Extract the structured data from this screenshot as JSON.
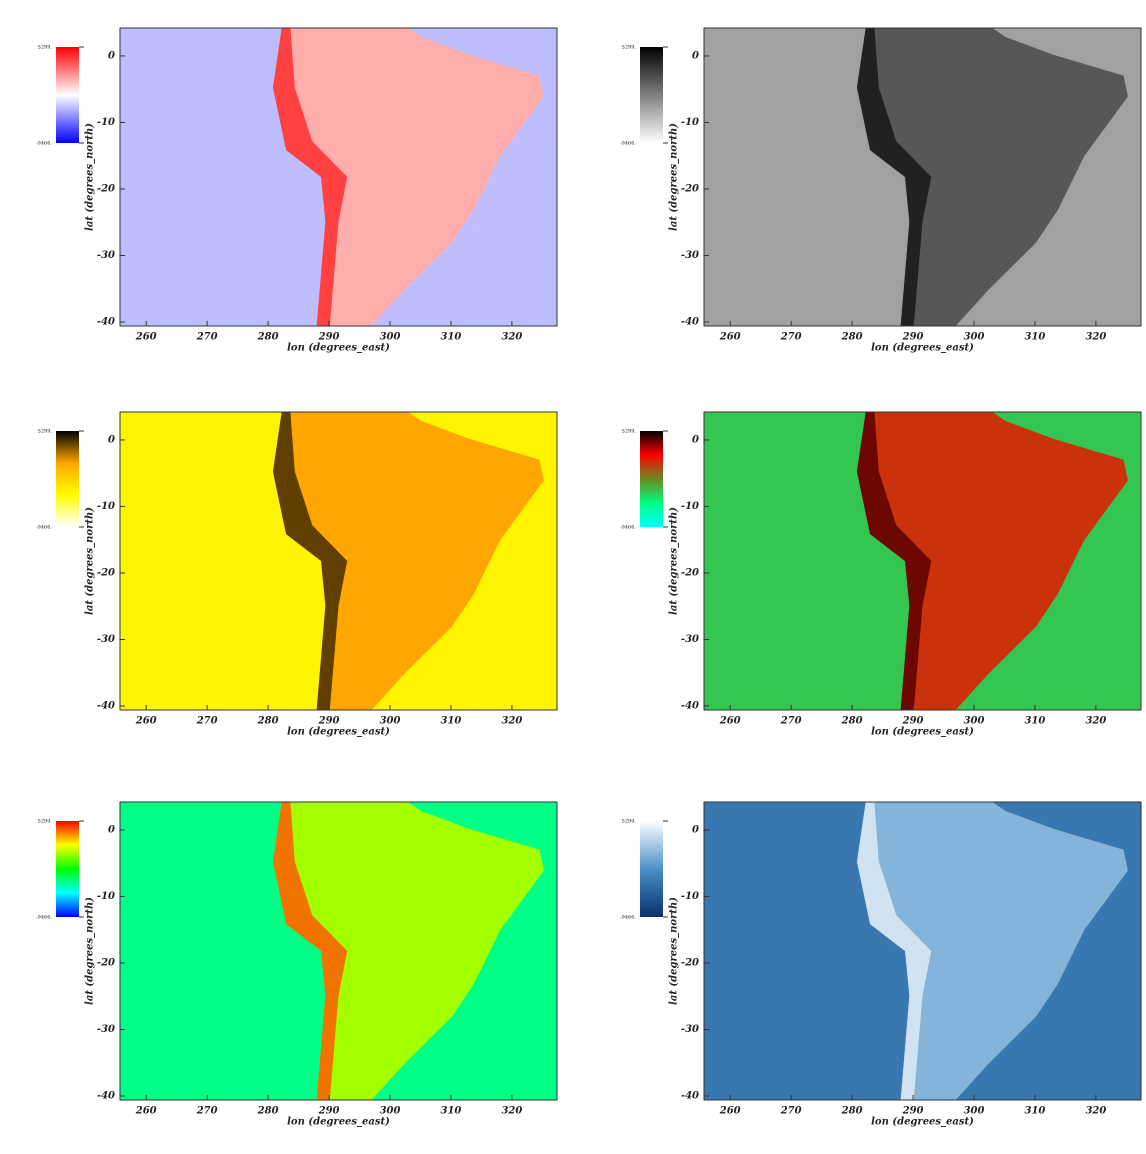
{
  "chart_data": [
    {
      "type": "map",
      "xlabel": "lon (degrees_east)",
      "ylabel": "lat (degrees_north)",
      "xlim": [
        255.7,
        327.4
      ],
      "ylim": [
        -40.6,
        4.2
      ],
      "xticks": [
        260,
        270,
        280,
        290,
        300,
        310,
        320
      ],
      "yticks": [
        0,
        -10,
        -20,
        -30,
        -40
      ],
      "clim": [
        {
          "value": -9466,
          "label": "-9466."
        },
        {
          "value": 5299,
          "label": "5299."
        }
      ],
      "colormap": [
        "#0000ff",
        "#ffffff",
        "#ff0000"
      ]
    },
    {
      "type": "map",
      "xlabel": "lon (degrees_east)",
      "ylabel": "lat (degrees_north)",
      "xlim": [
        255.7,
        327.4
      ],
      "ylim": [
        -40.6,
        4.2
      ],
      "xticks": [
        260,
        270,
        280,
        290,
        300,
        310,
        320
      ],
      "yticks": [
        0,
        -10,
        -20,
        -30,
        -40
      ],
      "clim": [
        {
          "value": -9466,
          "label": "-9466."
        },
        {
          "value": 5299,
          "label": "5299."
        }
      ],
      "colormap": [
        "#ffffff",
        "#000000"
      ]
    },
    {
      "type": "map",
      "xlabel": "lon (degrees_east)",
      "ylabel": "lat (degrees_north)",
      "xlim": [
        255.7,
        327.4
      ],
      "ylim": [
        -40.6,
        4.2
      ],
      "xticks": [
        260,
        270,
        280,
        290,
        300,
        310,
        320
      ],
      "yticks": [
        0,
        -10,
        -20,
        -30,
        -40
      ],
      "clim": [
        {
          "value": -9466,
          "label": "-9466."
        },
        {
          "value": 5299,
          "label": "5299."
        }
      ],
      "colormap": [
        "#ffffff",
        "#ffff00",
        "#ffa500",
        "#000000"
      ]
    },
    {
      "type": "map",
      "xlabel": "lon (degrees_east)",
      "ylabel": "lat (degrees_north)",
      "xlim": [
        255.7,
        327.4
      ],
      "ylim": [
        -40.6,
        4.2
      ],
      "xticks": [
        260,
        270,
        280,
        290,
        300,
        310,
        320
      ],
      "yticks": [
        0,
        -10,
        -20,
        -30,
        -40
      ],
      "clim": [
        {
          "value": -9466,
          "label": "-9466."
        },
        {
          "value": 5299,
          "label": "5299."
        }
      ],
      "colormap": [
        "#00ffff",
        "#00ff80",
        "#6a8a20",
        "#ff0000",
        "#000000"
      ]
    },
    {
      "type": "map",
      "xlabel": "lon (degrees_east)",
      "ylabel": "lat (degrees_north)",
      "xlim": [
        255.7,
        327.4
      ],
      "ylim": [
        -40.6,
        4.2
      ],
      "xticks": [
        260,
        270,
        280,
        290,
        300,
        310,
        320
      ],
      "yticks": [
        0,
        -10,
        -20,
        -30,
        -40
      ],
      "clim": [
        {
          "value": -9466,
          "label": "-9466."
        },
        {
          "value": 5299,
          "label": "5299."
        }
      ],
      "colormap": [
        "#0000ff",
        "#00ffff",
        "#00ff00",
        "#ffff00",
        "#ff0000"
      ]
    },
    {
      "type": "map",
      "xlabel": "lon (degrees_east)",
      "ylabel": "lat (degrees_north)",
      "xlim": [
        255.7,
        327.4
      ],
      "ylim": [
        -40.6,
        4.2
      ],
      "xticks": [
        260,
        270,
        280,
        290,
        300,
        310,
        320
      ],
      "yticks": [
        0,
        -10,
        -20,
        -30,
        -40
      ],
      "clim": [
        {
          "value": -9466,
          "label": "-9466."
        },
        {
          "value": 5299,
          "label": "5299."
        }
      ],
      "colormap": [
        "#08306b",
        "#4a90c8",
        "#ffffff"
      ]
    }
  ]
}
